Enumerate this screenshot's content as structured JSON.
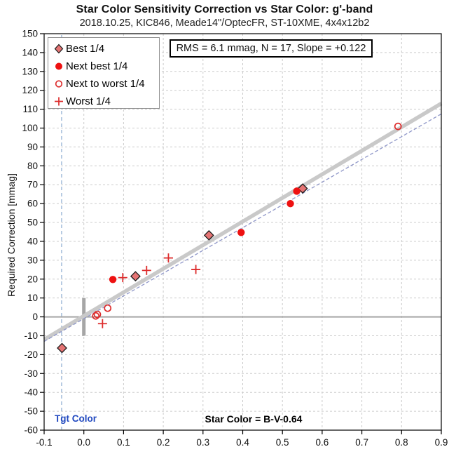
{
  "header": {
    "title": "Star Color Sensitivity Correction vs Star Color: g'-band",
    "subtitle": "2018.10.25, KIC846, Meade14\"/OptecFR, ST-10XME, 4x4x12b2"
  },
  "colors": {
    "marker_red": "#ee1111",
    "open_red": "#dd2c2c",
    "diamond_fill": "#e57474",
    "diamond_stroke": "#1a1a1a",
    "trend_gray": "#c9c9c9",
    "dashed_fit_blue": "#8e96c8",
    "tgt_line_blue": "#a8c0dc",
    "tgt_label_blue": "#2149c0",
    "grid_gray": "#cccccc",
    "zero_line_gray": "#a6a6a6",
    "frame_black": "#000000"
  },
  "chart_data": {
    "type": "scatter",
    "title": "Star Color Sensitivity Correction vs Star Color: g'-band",
    "subtitle": "2018.10.25, KIC846, Meade14\"/OptecFR, ST-10XME, 4x4x12b2",
    "xlabel": "",
    "ylabel": "Required Correction [mmag]",
    "xlim": [
      -0.1,
      0.9
    ],
    "ylim": [
      -60,
      150
    ],
    "grid": "dashed",
    "legend_position": "top-left",
    "x_ticks": [
      "-0.1",
      "0.0",
      "0.1",
      "0.2",
      "0.3",
      "0.4",
      "0.5",
      "0.6",
      "0.7",
      "0.8",
      "0.9"
    ],
    "y_ticks": [
      "150",
      "140",
      "130",
      "120",
      "110",
      "100",
      "90",
      "80",
      "70",
      "60",
      "50",
      "40",
      "30",
      "20",
      "10",
      "0",
      "-10",
      "-20",
      "-30",
      "-40",
      "-50",
      "-60"
    ],
    "stats_box": "RMS = 6.1 mmag, N = 17, Slope = +0.122",
    "annotations": {
      "tgt_color_label": "Tgt Color",
      "tgt_color_x": -0.056,
      "star_color_label": "Star Color = B-V-0.64"
    },
    "zero_line_y": 0,
    "error_bar": {
      "x": 0,
      "y_from": -10,
      "y_to": 10
    },
    "trend_line": {
      "x1": -0.1,
      "y1": -12,
      "x2": 0.9,
      "y2": 113
    },
    "dashed_line": {
      "x1": -0.1,
      "y1": -13,
      "x2": 0.9,
      "y2": 107.5
    },
    "series": [
      {
        "name": "Best 1/4",
        "marker": "diamond",
        "points": [
          [
            -0.055,
            -16.5
          ],
          [
            0.13,
            21.5
          ],
          [
            0.315,
            43.2
          ],
          [
            0.551,
            68
          ]
        ]
      },
      {
        "name": "Next best 1/4",
        "marker": "circle",
        "points": [
          [
            0.073,
            19.8
          ],
          [
            0.396,
            44.7
          ],
          [
            0.52,
            60
          ],
          [
            0.536,
            66.6
          ]
        ]
      },
      {
        "name": "Next to worst 1/4",
        "marker": "open-circle",
        "points": [
          [
            0.03,
            0.5
          ],
          [
            0.034,
            1.3
          ],
          [
            0.06,
            4.6
          ],
          [
            0.791,
            100.9
          ]
        ]
      },
      {
        "name": "Worst 1/4",
        "marker": "plus",
        "points": [
          [
            0.047,
            -3.6
          ],
          [
            0.098,
            20.8
          ],
          [
            0.158,
            24.6
          ],
          [
            0.213,
            31.2
          ],
          [
            0.282,
            25.1
          ]
        ]
      }
    ]
  }
}
